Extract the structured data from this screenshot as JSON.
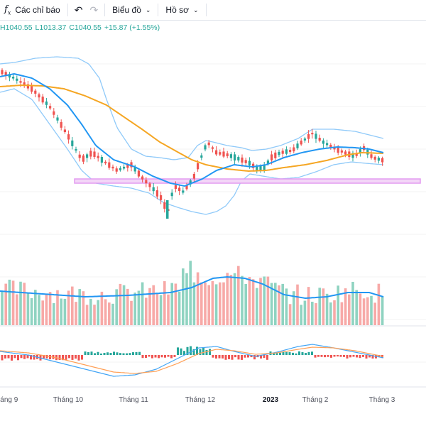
{
  "toolbar": {
    "indicators_label": "Các chỉ báo",
    "chart_type_label": "Biểu đồ",
    "profile_label": "Hồ sơ",
    "indicators_icon": "function-icon",
    "undo_icon": "undo-icon",
    "redo_icon": "redo-icon"
  },
  "ohlc": {
    "high": "H1040.55",
    "low": "L1013.37",
    "close": "C1040.55",
    "change": "+15.87 (+1.55%)"
  },
  "x_axis": {
    "labels": [
      "háng 9",
      "Tháng 10",
      "Tháng 11",
      "Tháng 12",
      "2023",
      "Tháng 2",
      "Tháng 3"
    ]
  },
  "colors": {
    "up": "#26a69a",
    "down": "#ef5350",
    "up_volume": "#8fd3c1",
    "down_volume": "#f7a9a7",
    "bollinger": "#90caf9",
    "sma_fast": "#2196f3",
    "sma_slow": "#f5a623",
    "support_line": "#e39bf0",
    "macd_line": "#42a5f5",
    "signal_line": "#ffa057"
  },
  "chart_data": {
    "type": "candlestick",
    "title": "",
    "support_level_note": "horizontal support band"
  }
}
